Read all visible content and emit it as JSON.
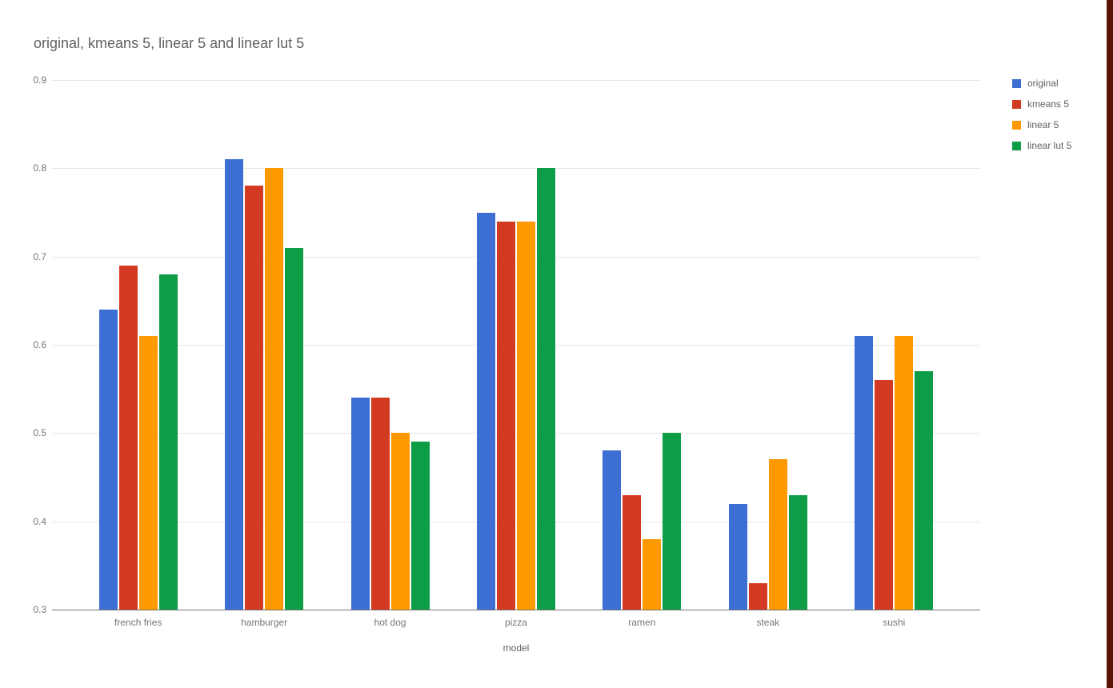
{
  "chart_data": {
    "type": "bar",
    "title": "original, kmeans 5, linear 5 and linear lut 5",
    "xlabel": "model",
    "ylabel": "",
    "categories": [
      "french fries",
      "hamburger",
      "hot dog",
      "pizza",
      "ramen",
      "steak",
      "sushi"
    ],
    "series": [
      {
        "name": "original",
        "color": "#3D6ED3",
        "values": [
          0.64,
          0.81,
          0.54,
          0.75,
          0.48,
          0.42,
          0.61
        ]
      },
      {
        "name": "kmeans 5",
        "color": "#D33A22",
        "values": [
          0.69,
          0.78,
          0.54,
          0.74,
          0.43,
          0.33,
          0.56
        ]
      },
      {
        "name": "linear 5",
        "color": "#FF9900",
        "values": [
          0.61,
          0.8,
          0.5,
          0.74,
          0.38,
          0.47,
          0.61
        ]
      },
      {
        "name": "linear lut 5",
        "color": "#0C9D46",
        "values": [
          0.68,
          0.71,
          0.49,
          0.8,
          0.5,
          0.43,
          0.57
        ]
      }
    ],
    "ylim": [
      0.3,
      0.9
    ],
    "ytick_step": 0.1,
    "grid": true,
    "legend_position": "right"
  },
  "ui": {
    "right_edge_color": "#5A1505"
  }
}
